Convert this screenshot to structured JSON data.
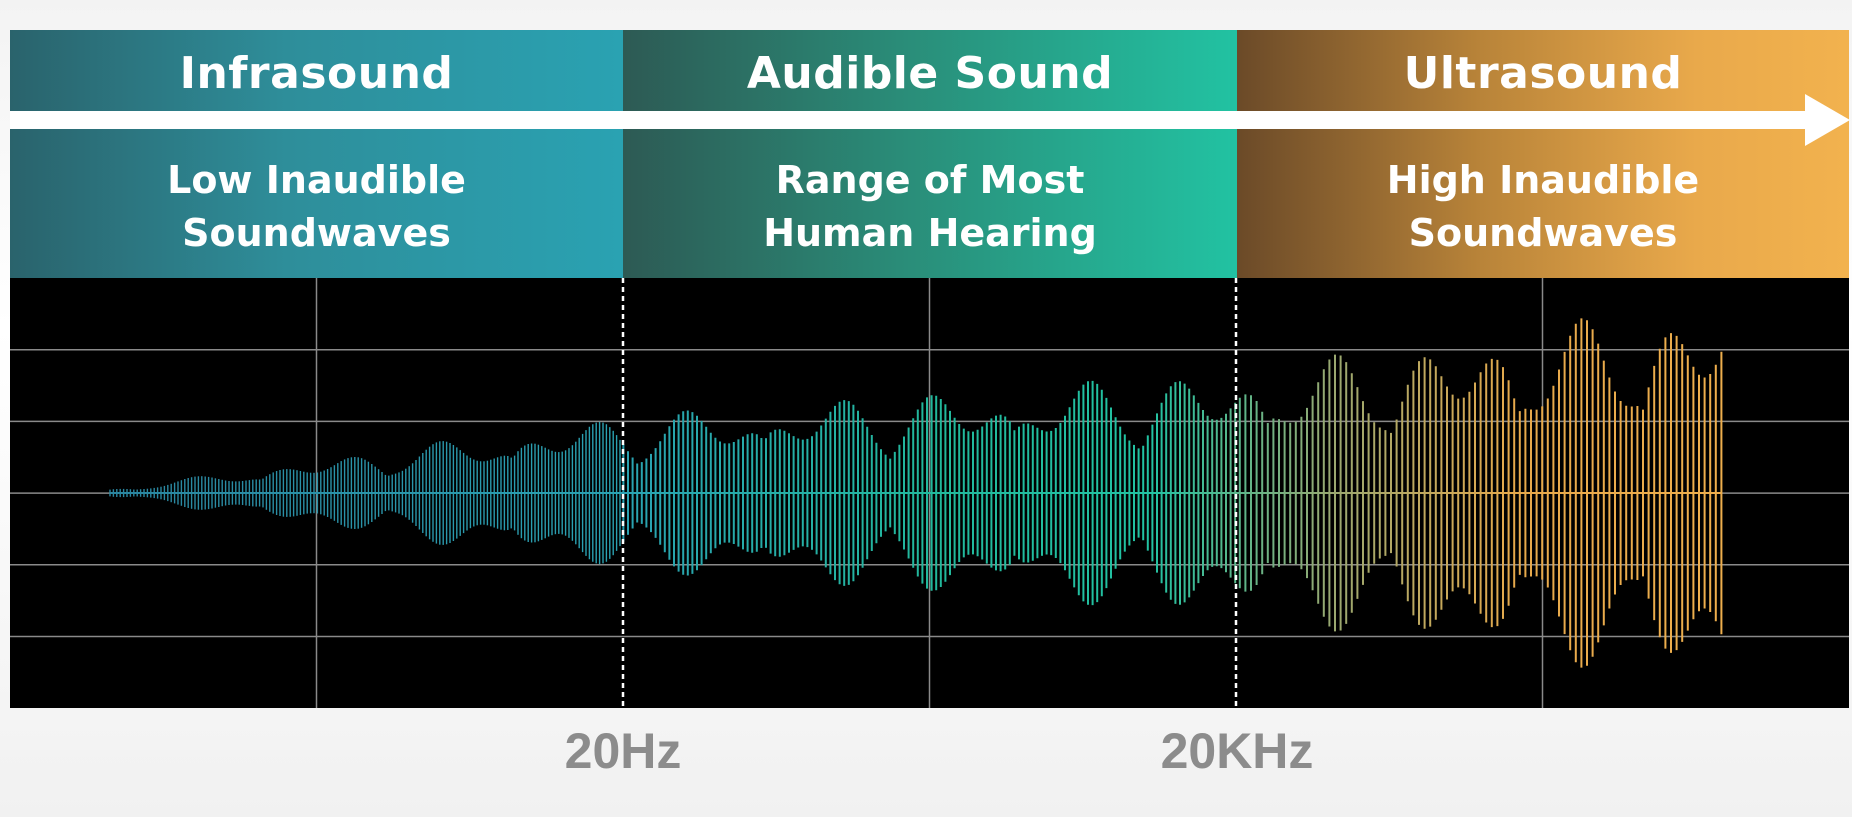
{
  "bands": [
    {
      "title": "Infrasound",
      "desc": [
        "Low Inaudible",
        "Soundwaves"
      ]
    },
    {
      "title": "Audible Sound",
      "desc": [
        "Range of Most",
        "Human Hearing"
      ]
    },
    {
      "title": "Ultrasound",
      "desc": [
        "High Inaudible",
        "Soundwaves"
      ]
    }
  ],
  "boundaries": [
    {
      "label": "20Hz"
    },
    {
      "label": "20KHz"
    }
  ],
  "colors": {
    "infrasound": "#2e9aab",
    "audible": "#22c2a2",
    "ultrasound": "#f2b24e",
    "plot_background": "#000000",
    "grid": "#8a8a8a",
    "boundary_label": "#8c8c8c"
  }
}
